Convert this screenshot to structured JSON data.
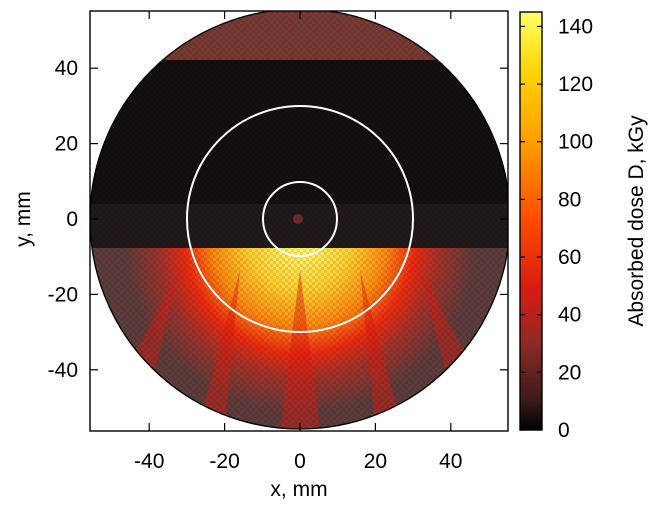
{
  "chart_data": {
    "type": "heatmap",
    "title": "",
    "xlabel": "x, mm",
    "ylabel": "y, mm",
    "xlim": [
      -55,
      55
    ],
    "ylim": [
      -55,
      55
    ],
    "x_ticks": [
      -40,
      -20,
      0,
      20,
      40
    ],
    "y_ticks": [
      40,
      20,
      0,
      -20,
      -40
    ],
    "x_tick_labels": [
      "-40",
      "-20",
      "0",
      "20",
      "40"
    ],
    "y_tick_labels": [
      "40",
      "20",
      "0",
      "-20",
      "-40"
    ],
    "grid": false,
    "sample_disk": {
      "center": [
        0,
        0
      ],
      "radius": 56
    },
    "reference_circles_radius_mm": [
      10,
      30
    ],
    "shielded_band_y_mm": [
      -8,
      42
    ],
    "irradiated_region": "lower half (y < -8 mm)",
    "colorbar": {
      "label": "Absorbed dose D, kGy",
      "range": [
        0,
        145
      ],
      "ticks": [
        0,
        20,
        40,
        60,
        80,
        100,
        120,
        140
      ],
      "tick_labels": [
        "0",
        "20",
        "40",
        "60",
        "80",
        "100",
        "120",
        "140"
      ],
      "colormap": [
        "#000000",
        "#3a1a1a",
        "#8a2a24",
        "#d81c12",
        "#ff4a00",
        "#ff9a00",
        "#ffd200",
        "#ffff66"
      ]
    }
  }
}
